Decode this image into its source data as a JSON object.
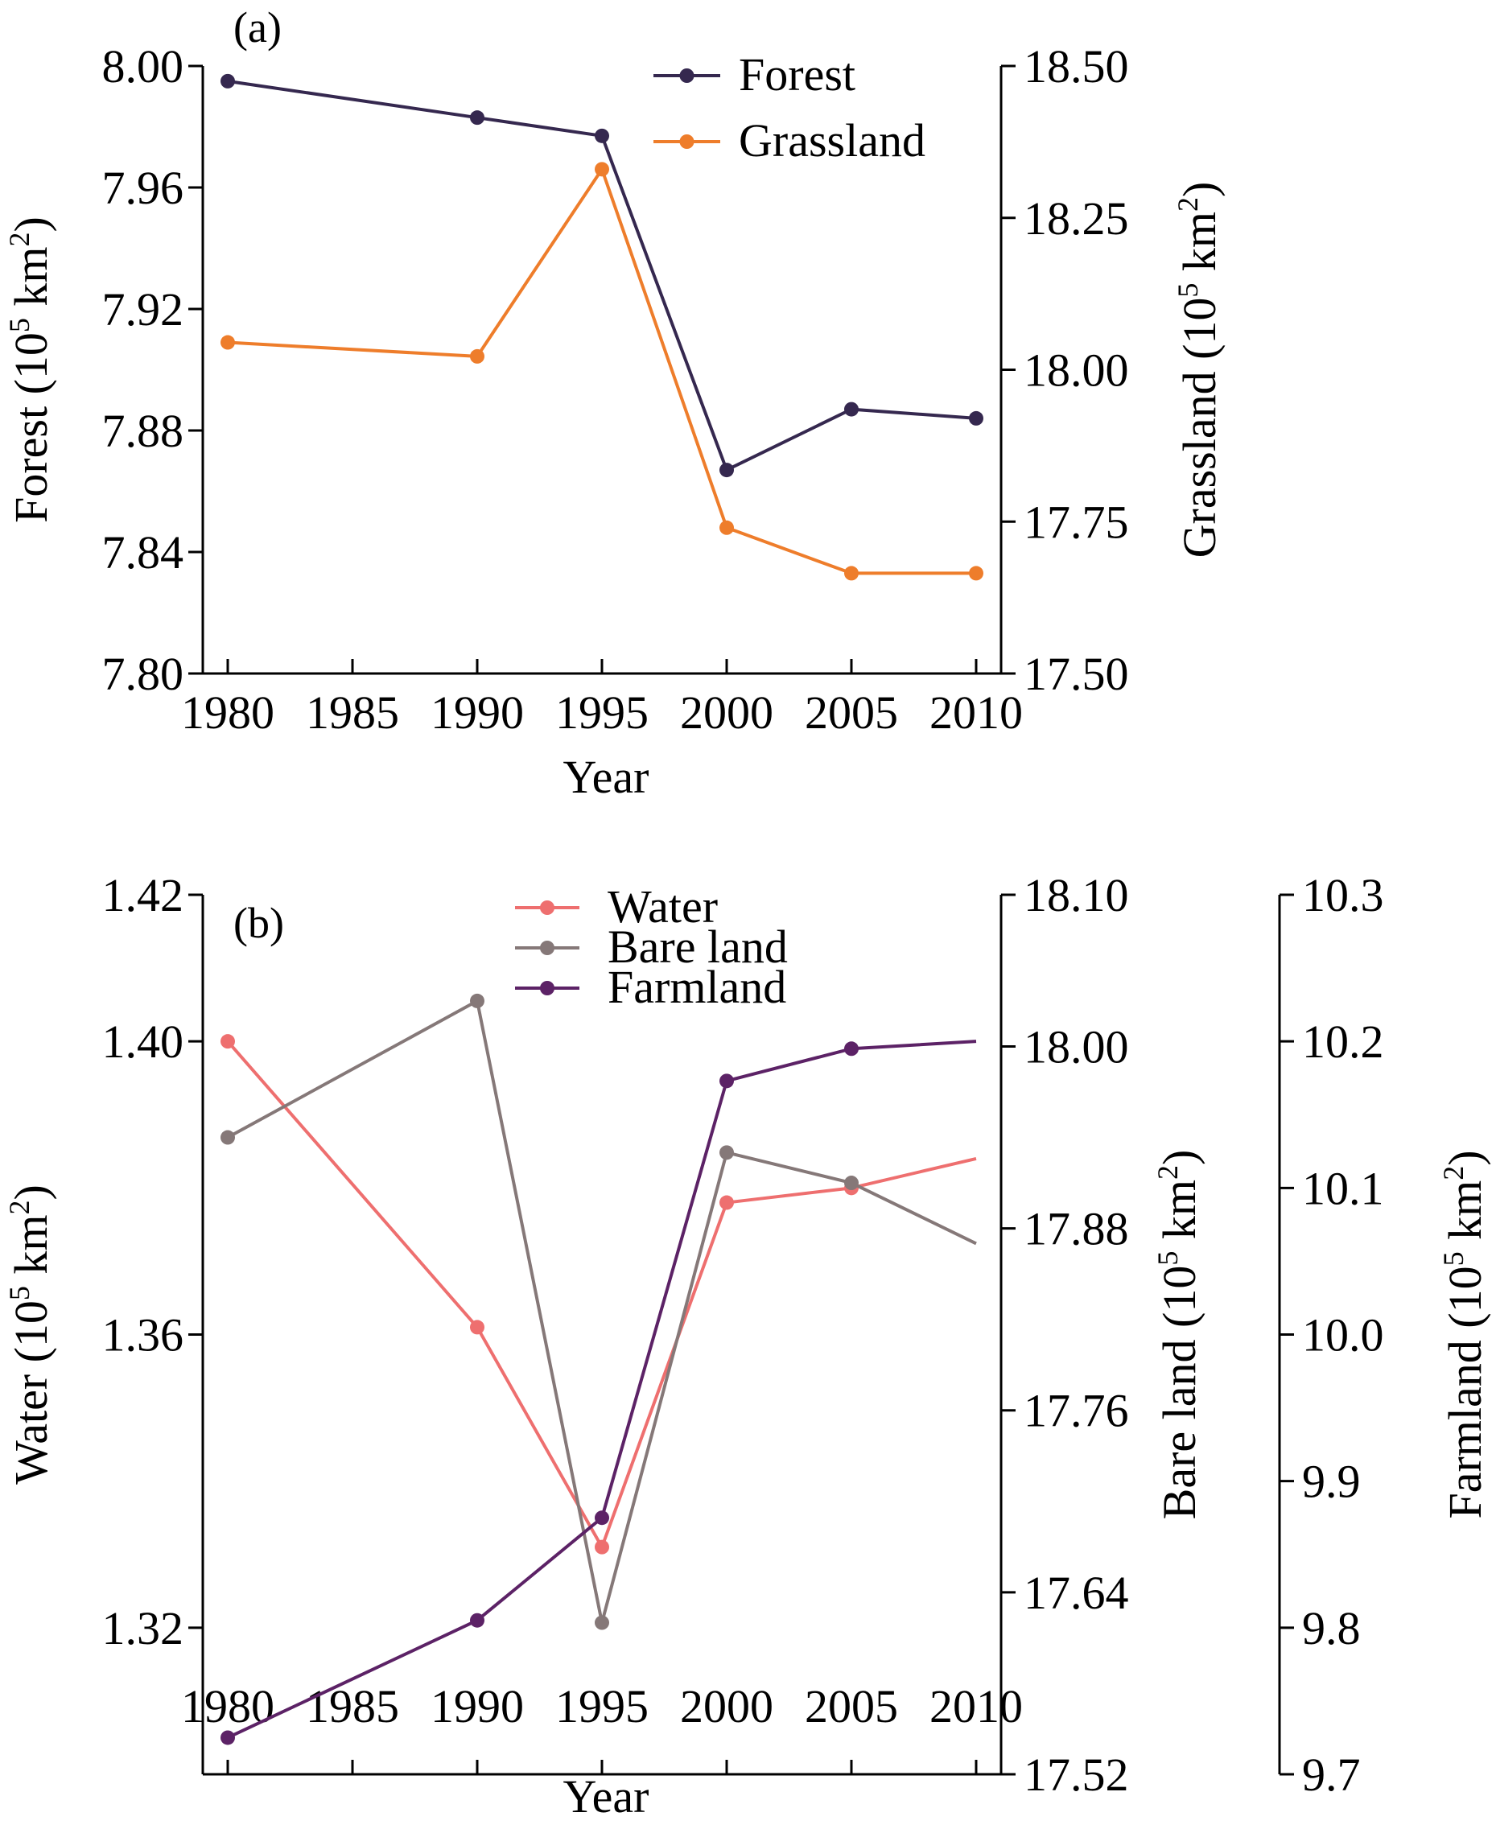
{
  "chart_data": [
    {
      "type": "line",
      "panel_label": "(a)",
      "xlabel": "Year",
      "x_ticks": [
        "1980",
        "1985",
        "1990",
        "1995",
        "2000",
        "2005",
        "2010"
      ],
      "xlim": [
        1979,
        2011
      ],
      "x": [
        1980,
        1990,
        1995,
        2000,
        2005,
        2010
      ],
      "legend_position": "top-right",
      "axes": [
        {
          "id": "forest",
          "side": "left",
          "title_main": "Forest (10",
          "title_sup": "5",
          "title_unit": " km",
          "title_sup2": "2",
          "title_close": ")",
          "ylim": [
            7.8,
            8.0
          ],
          "ticks": [
            "7.80",
            "7.84",
            "7.88",
            "7.92",
            "7.96",
            "8.00"
          ]
        },
        {
          "id": "grassland",
          "side": "right",
          "title_main": "Grassland (10",
          "title_sup": "5",
          "title_unit": " km",
          "title_sup2": "2",
          "title_close": ")",
          "ylim": [
            17.5,
            18.5
          ],
          "ticks": [
            "17.50",
            "17.75",
            "18.00",
            "18.25",
            "18.50"
          ]
        }
      ],
      "series": [
        {
          "name": "Forest",
          "axis": "forest",
          "color": "#35284f",
          "values": [
            7.995,
            7.983,
            7.977,
            7.867,
            7.887,
            7.884
          ]
        },
        {
          "name": "Grassland",
          "axis": "grassland",
          "color": "#ee7d2b",
          "values": [
            18.045,
            18.022,
            18.33,
            17.74,
            17.665,
            17.665
          ]
        }
      ]
    },
    {
      "type": "line",
      "panel_label": "(b)",
      "xlabel": "Year",
      "x_ticks": [
        "1980",
        "1985",
        "1990",
        "1995",
        "2000",
        "2005",
        "2010"
      ],
      "xlim": [
        1979,
        2011
      ],
      "x": [
        1980,
        1990,
        1995,
        2000,
        2005,
        2010
      ],
      "legend_position": "top-center",
      "axes": [
        {
          "id": "water",
          "side": "left",
          "title_main": "Water (10",
          "title_sup": "5",
          "title_unit": " km",
          "title_sup2": "2",
          "title_close": ")",
          "ylim": [
            1.3,
            1.42
          ],
          "ticks": [
            "1.32",
            "1.36",
            "1.40",
            "1.42"
          ]
        },
        {
          "id": "bareland",
          "side": "right",
          "title_main": "Bare land (10",
          "title_sup": "5",
          "title_unit": " km",
          "title_sup2": "2",
          "title_close": ")",
          "ylim": [
            17.52,
            18.1
          ],
          "ticks": [
            "17.52",
            "17.64",
            "17.76",
            "17.88",
            "18.00",
            "18.10"
          ]
        },
        {
          "id": "farmland",
          "side": "right-outer",
          "title_main": "Farmland (10",
          "title_sup": "5",
          "title_unit": " km",
          "title_sup2": "2",
          "title_close": ")",
          "ylim": [
            9.7,
            10.3
          ],
          "ticks": [
            "9.7",
            "9.8",
            "9.9",
            "10.0",
            "10.1",
            "10.2",
            "10.3"
          ]
        }
      ],
      "series": [
        {
          "name": "Water",
          "axis": "water",
          "color": "#ee6f6f",
          "values": [
            1.4,
            1.361,
            1.331,
            1.378,
            1.38,
            1.384
          ]
        },
        {
          "name": "Bare land",
          "axis": "bareland",
          "color": "#857878",
          "values": [
            17.94,
            18.03,
            17.62,
            17.93,
            17.91,
            17.87
          ]
        },
        {
          "name": "Farmland",
          "axis": "farmland",
          "color": "#5c2266",
          "values": [
            9.725,
            9.805,
            9.875,
            10.173,
            10.195,
            10.2
          ]
        }
      ]
    }
  ]
}
